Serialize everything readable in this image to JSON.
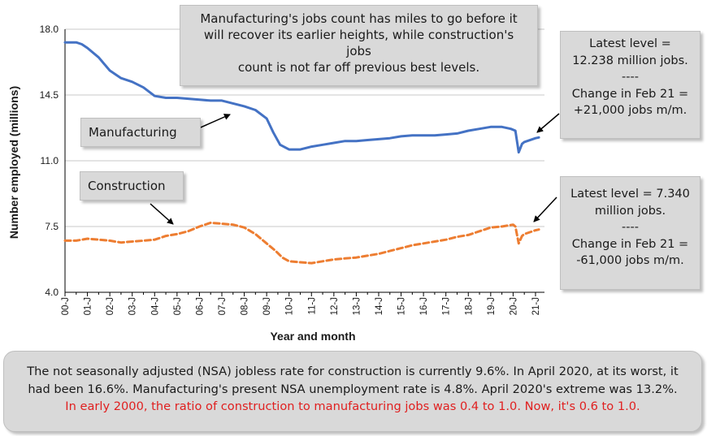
{
  "annotations": {
    "title_box": [
      "Manufacturing's jobs count has miles to go before it",
      "will recover its earlier heights, while construction's jobs",
      "count is not far off previous best levels."
    ],
    "manufacturing_stat": [
      "Latest level =",
      "12.238 million jobs.",
      "----",
      "Change in Feb 21 =",
      "+21,000 jobs m/m."
    ],
    "construction_stat": [
      "Latest level = 7.340",
      "million jobs.",
      "----",
      "Change in Feb 21 =",
      "-61,000 jobs m/m."
    ],
    "manufacturing_label": "Manufacturing",
    "construction_label": "Construction"
  },
  "footer": {
    "lines": [
      "The not seasonally adjusted (NSA) jobless rate for construction is currently 9.6%. In April 2020, at its worst, it",
      "had been 16.6%. Manufacturing's present NSA unemployment rate is 4.8%. April 2020's extreme was 13.2%."
    ],
    "highlight": "In early 2000, the ratio of construction to manufacturing jobs was 0.4 to 1.0. Now, it's 0.6 to 1.0.",
    "highlight_color": "#e02020"
  },
  "chart_data": {
    "type": "line",
    "xlabel": "Year and month",
    "ylabel": "Number employed (millions)",
    "ylim": [
      4.0,
      18.0
    ],
    "yticks": [
      "4.0",
      "7.5",
      "11.0",
      "14.5",
      "18.0"
    ],
    "xtick_labels": [
      "00-J",
      "01-J",
      "02-J",
      "03-J",
      "04-J",
      "05-J",
      "06-J",
      "07-J",
      "08-J",
      "09-J",
      "10-J",
      "11-J",
      "12-J",
      "13-J",
      "14-J",
      "15-J",
      "16-J",
      "17-J",
      "18-J",
      "19-J",
      "20-J",
      "21-J"
    ],
    "x_range": [
      2000.0,
      2021.4
    ],
    "grid": "horizontal",
    "series": [
      {
        "name": "Manufacturing",
        "color": "#4472c4",
        "style": "solid",
        "points": [
          [
            2000.0,
            17.3
          ],
          [
            2000.5,
            17.3
          ],
          [
            2000.75,
            17.2
          ],
          [
            2001.0,
            17.0
          ],
          [
            2001.5,
            16.5
          ],
          [
            2002.0,
            15.8
          ],
          [
            2002.5,
            15.4
          ],
          [
            2003.0,
            15.2
          ],
          [
            2003.5,
            14.9
          ],
          [
            2004.0,
            14.45
          ],
          [
            2004.5,
            14.35
          ],
          [
            2005.0,
            14.35
          ],
          [
            2005.5,
            14.3
          ],
          [
            2006.0,
            14.25
          ],
          [
            2006.5,
            14.2
          ],
          [
            2007.0,
            14.2
          ],
          [
            2007.5,
            14.05
          ],
          [
            2008.0,
            13.9
          ],
          [
            2008.5,
            13.7
          ],
          [
            2009.0,
            13.25
          ],
          [
            2009.3,
            12.5
          ],
          [
            2009.6,
            11.85
          ],
          [
            2010.0,
            11.6
          ],
          [
            2010.5,
            11.6
          ],
          [
            2011.0,
            11.75
          ],
          [
            2011.5,
            11.85
          ],
          [
            2012.0,
            11.95
          ],
          [
            2012.5,
            12.05
          ],
          [
            2013.0,
            12.05
          ],
          [
            2013.5,
            12.1
          ],
          [
            2014.0,
            12.15
          ],
          [
            2014.5,
            12.2
          ],
          [
            2015.0,
            12.3
          ],
          [
            2015.5,
            12.35
          ],
          [
            2016.0,
            12.35
          ],
          [
            2016.5,
            12.35
          ],
          [
            2017.0,
            12.4
          ],
          [
            2017.5,
            12.45
          ],
          [
            2018.0,
            12.6
          ],
          [
            2018.5,
            12.7
          ],
          [
            2019.0,
            12.8
          ],
          [
            2019.5,
            12.8
          ],
          [
            2019.9,
            12.7
          ],
          [
            2020.1,
            12.6
          ],
          [
            2020.25,
            11.45
          ],
          [
            2020.4,
            11.9
          ],
          [
            2020.5,
            12.0
          ],
          [
            2021.0,
            12.2
          ],
          [
            2021.15,
            12.24
          ]
        ]
      },
      {
        "name": "Construction",
        "color": "#ed7d31",
        "style": "dashed",
        "points": [
          [
            2000.0,
            6.75
          ],
          [
            2000.5,
            6.75
          ],
          [
            2001.0,
            6.85
          ],
          [
            2001.5,
            6.8
          ],
          [
            2002.0,
            6.75
          ],
          [
            2002.5,
            6.65
          ],
          [
            2003.0,
            6.7
          ],
          [
            2003.5,
            6.75
          ],
          [
            2004.0,
            6.8
          ],
          [
            2004.5,
            7.0
          ],
          [
            2005.0,
            7.1
          ],
          [
            2005.5,
            7.25
          ],
          [
            2006.0,
            7.5
          ],
          [
            2006.5,
            7.7
          ],
          [
            2007.0,
            7.65
          ],
          [
            2007.5,
            7.6
          ],
          [
            2008.0,
            7.45
          ],
          [
            2008.5,
            7.1
          ],
          [
            2009.0,
            6.6
          ],
          [
            2009.4,
            6.2
          ],
          [
            2009.7,
            5.85
          ],
          [
            2010.0,
            5.65
          ],
          [
            2010.5,
            5.6
          ],
          [
            2011.0,
            5.55
          ],
          [
            2011.5,
            5.65
          ],
          [
            2012.0,
            5.75
          ],
          [
            2012.5,
            5.8
          ],
          [
            2013.0,
            5.85
          ],
          [
            2013.5,
            5.95
          ],
          [
            2014.0,
            6.05
          ],
          [
            2014.5,
            6.2
          ],
          [
            2015.0,
            6.35
          ],
          [
            2015.5,
            6.5
          ],
          [
            2016.0,
            6.6
          ],
          [
            2016.5,
            6.7
          ],
          [
            2017.0,
            6.8
          ],
          [
            2017.5,
            6.95
          ],
          [
            2018.0,
            7.05
          ],
          [
            2018.5,
            7.25
          ],
          [
            2019.0,
            7.45
          ],
          [
            2019.5,
            7.5
          ],
          [
            2020.0,
            7.6
          ],
          [
            2020.1,
            7.5
          ],
          [
            2020.25,
            6.6
          ],
          [
            2020.4,
            7.0
          ],
          [
            2020.5,
            7.1
          ],
          [
            2021.0,
            7.3
          ],
          [
            2021.15,
            7.34
          ]
        ]
      }
    ]
  }
}
